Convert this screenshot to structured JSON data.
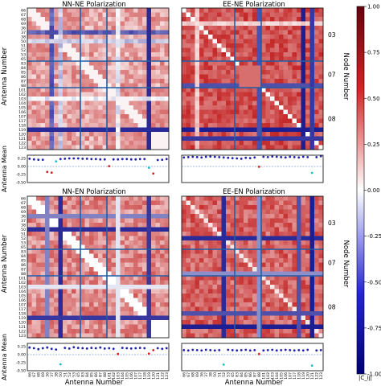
{
  "antennas": [
    "66",
    "67",
    "68",
    "69",
    "36",
    "37",
    "38",
    "50",
    "51",
    "52",
    "53",
    "65",
    "83",
    "84",
    "85",
    "86",
    "87",
    "88",
    "101",
    "102",
    "103",
    "104",
    "105",
    "106",
    "107",
    "117",
    "118",
    "119",
    "120",
    "121",
    "122",
    "123"
  ],
  "node_labels": [
    "03",
    "07",
    "08"
  ],
  "panels": [
    {
      "title": "NN-NE Polarization",
      "pattern": "NN-NE",
      "means": [
        0.24,
        0.22,
        0.21,
        0.21,
        -0.17,
        -0.19,
        0.16,
        0.23,
        0.24,
        0.25,
        0.25,
        0.25,
        0.24,
        0.24,
        0.23,
        0.23,
        0.22,
        0.22,
        0.01,
        0.22,
        0.22,
        0.23,
        0.23,
        0.22,
        0.22,
        0.23,
        0.23,
        -0.04,
        -0.22,
        0.2,
        0.21,
        0.23
      ],
      "mean_colors": [
        "#1f1faf",
        "#1f1faf",
        "#1f1faf",
        "#1f1faf",
        "#d42020",
        "#d42020",
        "#17becf",
        "#1f1faf",
        "#1f1faf",
        "#1f1faf",
        "#1f1faf",
        "#1f1faf",
        "#1f1faf",
        "#1f1faf",
        "#1f1faf",
        "#1f1faf",
        "#1f1faf",
        "#1f1faf",
        "#d42020",
        "#1f1faf",
        "#1f1faf",
        "#1f1faf",
        "#1f1faf",
        "#1f1faf",
        "#1f1faf",
        "#1f1faf",
        "#1f1faf",
        "#17becf",
        "#d42020",
        "#1f1faf",
        "#1f1faf",
        "#1f1faf"
      ]
    },
    {
      "title": "EE-NE Polarization",
      "pattern": "EE-NE",
      "means": [
        0.28,
        0.29,
        0.3,
        0.29,
        0.28,
        0.3,
        0.31,
        0.3,
        0.29,
        0.28,
        0.27,
        0.26,
        0.25,
        0.24,
        0.27,
        0.26,
        0.28,
        -0.01,
        0.3,
        0.29,
        0.31,
        0.3,
        0.29,
        0.28,
        0.3,
        0.29,
        0.28,
        0.3,
        0.29,
        -0.2,
        0.29,
        0.32
      ],
      "mean_colors": [
        "#1f1faf",
        "#1f1faf",
        "#1f1faf",
        "#1f1faf",
        "#1f1faf",
        "#1f1faf",
        "#1f1faf",
        "#1f1faf",
        "#1f1faf",
        "#1f1faf",
        "#1f1faf",
        "#1f1faf",
        "#1f1faf",
        "#1f1faf",
        "#1f1faf",
        "#1f1faf",
        "#1f1faf",
        "#d42020",
        "#1f1faf",
        "#1f1faf",
        "#1f1faf",
        "#1f1faf",
        "#1f1faf",
        "#1f1faf",
        "#1f1faf",
        "#1f1faf",
        "#1f1faf",
        "#1f1faf",
        "#1f1faf",
        "#17becf",
        "#1f1faf",
        "#1f1faf"
      ]
    },
    {
      "title": "NN-EN Polarization",
      "pattern": "NN-EN",
      "means": [
        0.22,
        0.2,
        0.17,
        0.2,
        0.22,
        0.18,
        0.16,
        -0.3,
        0.21,
        0.19,
        0.23,
        0.21,
        0.2,
        0.19,
        0.21,
        0.2,
        0.22,
        0.19,
        0.2,
        0.18,
        0.02,
        0.21,
        0.2,
        0.19,
        0.2,
        0.21,
        0.2,
        0.03,
        0.14,
        0.2,
        0.18,
        0.2
      ],
      "mean_colors": [
        "#1f1faf",
        "#1f1faf",
        "#1f1faf",
        "#1f1faf",
        "#1f1faf",
        "#1f1faf",
        "#1f1faf",
        "#17becf",
        "#1f1faf",
        "#1f1faf",
        "#1f1faf",
        "#1f1faf",
        "#1f1faf",
        "#1f1faf",
        "#1f1faf",
        "#1f1faf",
        "#1f1faf",
        "#1f1faf",
        "#1f1faf",
        "#1f1faf",
        "#d42020",
        "#1f1faf",
        "#1f1faf",
        "#1f1faf",
        "#1f1faf",
        "#1f1faf",
        "#1f1faf",
        "#d42020",
        "#d42020",
        "#1f1faf",
        "#1f1faf",
        "#1f1faf"
      ]
    },
    {
      "title": "EE-EN Polarization",
      "pattern": "EE-EN",
      "means": [
        0.14,
        0.13,
        0.15,
        0.14,
        0.13,
        0.15,
        0.14,
        0.13,
        0.14,
        -0.31,
        0.15,
        0.14,
        0.13,
        0.14,
        0.15,
        0.13,
        0.14,
        0.02,
        0.13,
        0.14,
        0.15,
        0.13,
        0.14,
        0.15,
        0.14,
        0.13,
        0.14,
        0.13,
        0.15,
        -0.34,
        0.13,
        0.14
      ],
      "mean_colors": [
        "#1f1faf",
        "#1f1faf",
        "#1f1faf",
        "#1f1faf",
        "#1f1faf",
        "#1f1faf",
        "#1f1faf",
        "#1f1faf",
        "#1f1faf",
        "#17becf",
        "#1f1faf",
        "#1f1faf",
        "#1f1faf",
        "#1f1faf",
        "#1f1faf",
        "#1f1faf",
        "#1f1faf",
        "#d42020",
        "#1f1faf",
        "#1f1faf",
        "#1f1faf",
        "#1f1faf",
        "#1f1faf",
        "#1f1faf",
        "#1f1faf",
        "#1f1faf",
        "#1f1faf",
        "#1f1faf",
        "#1f1faf",
        "#17becf",
        "#1f1faf",
        "#1f1faf"
      ]
    }
  ],
  "axis": {
    "ylabel_heatmap": "Antenna Number",
    "ylabel_mean": "Antenna Mean",
    "xlabel": "Antenna Number",
    "node_axis_label": "Node Number",
    "mean_ticks": [
      "0.25",
      "0.00",
      "-0.25",
      "-0.50"
    ]
  },
  "colorbar": {
    "ticks": [
      "1.00",
      "0.75",
      "0.50",
      "0.25",
      "0.00",
      "-0.25",
      "-0.50",
      "-0.75",
      "-1.00"
    ],
    "label": "|C_ij|",
    "low_color": "#08089a",
    "mid_color": "#ffffff",
    "high_color": "#bf0f0f"
  },
  "chart_data": {
    "type": "heatmap",
    "value_range": [
      -1,
      1
    ],
    "node_groups": [
      [
        "03",
        12
      ],
      [
        "07",
        6
      ],
      [
        "08",
        14
      ]
    ]
  }
}
